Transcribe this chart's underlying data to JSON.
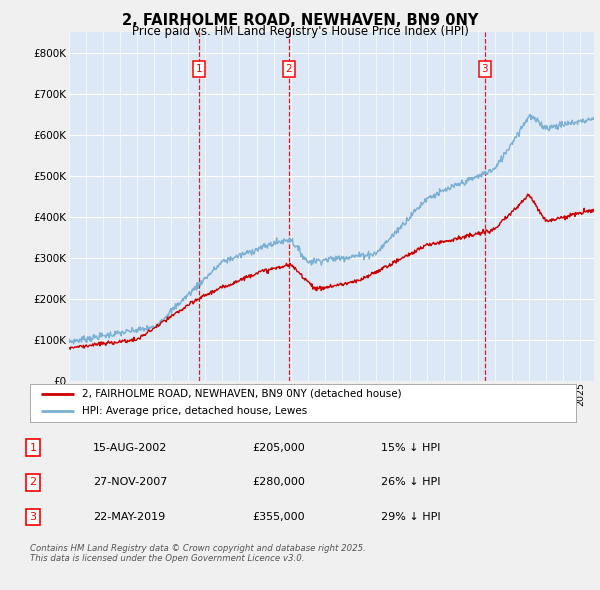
{
  "title_line1": "2, FAIRHOLME ROAD, NEWHAVEN, BN9 0NY",
  "title_line2": "Price paid vs. HM Land Registry's House Price Index (HPI)",
  "background_color": "#f0f0f0",
  "plot_bg_color": "#dce8f5",
  "ylim": [
    0,
    850000
  ],
  "yticks": [
    0,
    100000,
    200000,
    300000,
    400000,
    500000,
    600000,
    700000,
    800000
  ],
  "ytick_labels": [
    "£0",
    "£100K",
    "£200K",
    "£300K",
    "£400K",
    "£500K",
    "£600K",
    "£700K",
    "£800K"
  ],
  "xlim_start": 1995.0,
  "xlim_end": 2025.8,
  "sale_dates_num": [
    2002.62,
    2007.9,
    2019.39
  ],
  "sale_labels": [
    "1",
    "2",
    "3"
  ],
  "legend_line1": "2, FAIRHOLME ROAD, NEWHAVEN, BN9 0NY (detached house)",
  "legend_line2": "HPI: Average price, detached house, Lewes",
  "table_data": [
    [
      "1",
      "15-AUG-2002",
      "£205,000",
      "15% ↓ HPI"
    ],
    [
      "2",
      "27-NOV-2007",
      "£280,000",
      "26% ↓ HPI"
    ],
    [
      "3",
      "22-MAY-2019",
      "£355,000",
      "29% ↓ HPI"
    ]
  ],
  "footnote": "Contains HM Land Registry data © Crown copyright and database right 2025.\nThis data is licensed under the Open Government Licence v3.0.",
  "line_red_color": "#cc0000",
  "line_blue_color": "#7bafd4",
  "vline_color": "#cc0000"
}
